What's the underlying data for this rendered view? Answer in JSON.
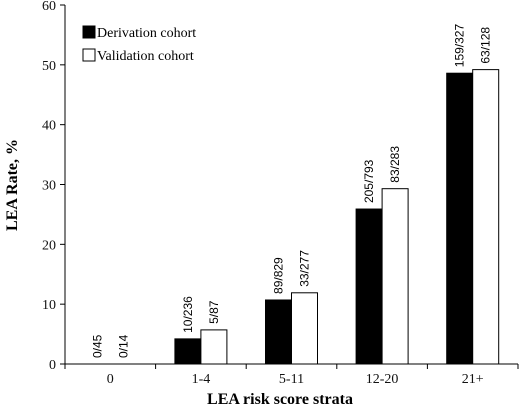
{
  "chart_data": {
    "type": "bar",
    "title": "",
    "xlabel": "LEA risk score strata",
    "ylabel": "LEA Rate, %",
    "ylim": [
      0,
      60
    ],
    "yticks": [
      "0",
      "10",
      "20",
      "30",
      "40",
      "50",
      "60"
    ],
    "categories": [
      "0",
      "1-4",
      "5-11",
      "12-20",
      "21+"
    ],
    "series": [
      {
        "name": "Derivation cohort",
        "color": "#000000",
        "values": [
          0,
          4.2,
          10.7,
          25.9,
          48.6
        ],
        "labels": [
          "0/45",
          "10/236",
          "89/829",
          "205/793",
          "159/327"
        ]
      },
      {
        "name": "Validation cohort",
        "color": "#ffffff",
        "values": [
          0,
          5.7,
          11.9,
          29.3,
          49.2
        ],
        "labels": [
          "0/14",
          "5/87",
          "33/277",
          "83/283",
          "63/128"
        ]
      }
    ],
    "legend": "top-left",
    "grid": false
  }
}
